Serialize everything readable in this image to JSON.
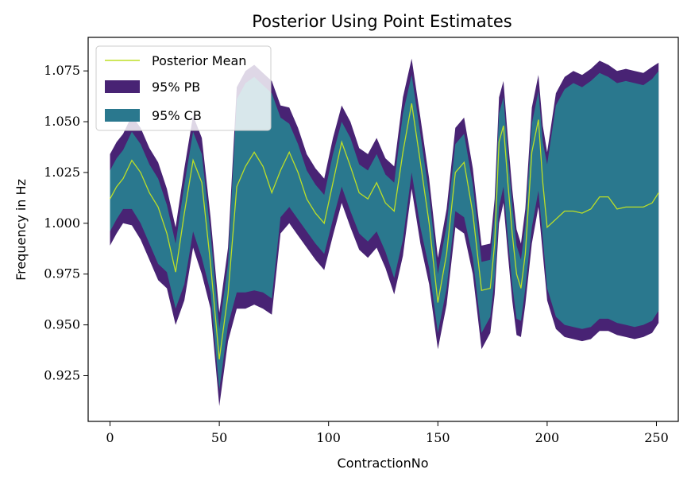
{
  "chart_data": {
    "type": "area",
    "title": "Posterior Using Point Estimates",
    "xlabel": "ContractionNo",
    "ylabel": "Frequency in Hz",
    "xlim": [
      -10,
      260
    ],
    "ylim": [
      0.9025,
      1.0915
    ],
    "xticks": [
      0,
      50,
      100,
      150,
      200,
      250
    ],
    "yticks": [
      0.925,
      0.95,
      0.975,
      1.0,
      1.025,
      1.05,
      1.075
    ],
    "ytick_labels": [
      "0.925",
      "0.950",
      "0.975",
      "1.000",
      "1.025",
      "1.050",
      "1.075"
    ],
    "xtick_labels": [
      "0",
      "50",
      "100",
      "150",
      "200",
      "250"
    ],
    "grid": false,
    "legend_position": "top-left",
    "colors": {
      "mean": "#bddf26",
      "pb": "#482374",
      "cb": "#2a788e"
    },
    "x": [
      0,
      3,
      6,
      10,
      14,
      18,
      22,
      26,
      30,
      34,
      38,
      42,
      46,
      50,
      54,
      58,
      62,
      66,
      70,
      74,
      78,
      82,
      86,
      90,
      94,
      98,
      102,
      106,
      110,
      114,
      118,
      122,
      126,
      130,
      134,
      138,
      142,
      146,
      150,
      154,
      158,
      162,
      166,
      170,
      174,
      176,
      178,
      180,
      182,
      184,
      186,
      188,
      190,
      193,
      196,
      198,
      200,
      204,
      208,
      212,
      216,
      220,
      224,
      228,
      232,
      236,
      240,
      244,
      248,
      251
    ],
    "series": [
      {
        "name": "Posterior Mean",
        "values": [
          1.012,
          1.018,
          1.022,
          1.031,
          1.025,
          1.015,
          1.008,
          0.995,
          0.976,
          1.005,
          1.031,
          1.02,
          0.98,
          0.933,
          0.965,
          1.018,
          1.028,
          1.035,
          1.028,
          1.015,
          1.026,
          1.035,
          1.025,
          1.012,
          1.005,
          1.0,
          1.02,
          1.04,
          1.028,
          1.015,
          1.012,
          1.02,
          1.01,
          1.006,
          1.035,
          1.059,
          1.03,
          1.0,
          0.961,
          0.985,
          1.025,
          1.03,
          1.005,
          0.967,
          0.968,
          0.99,
          1.04,
          1.048,
          1.02,
          0.995,
          0.975,
          0.968,
          0.985,
          1.035,
          1.051,
          1.02,
          0.998,
          1.002,
          1.006,
          1.006,
          1.005,
          1.007,
          1.013,
          1.013,
          1.007,
          1.008,
          1.008,
          1.008,
          1.01,
          1.015
        ]
      },
      {
        "name": "95% PB",
        "upper": [
          1.034,
          1.04,
          1.044,
          1.053,
          1.047,
          1.037,
          1.03,
          1.017,
          0.998,
          1.027,
          1.053,
          1.042,
          1.003,
          0.956,
          0.988,
          1.067,
          1.075,
          1.078,
          1.074,
          1.07,
          1.058,
          1.057,
          1.047,
          1.034,
          1.027,
          1.022,
          1.042,
          1.058,
          1.05,
          1.037,
          1.034,
          1.042,
          1.032,
          1.028,
          1.062,
          1.081,
          1.052,
          1.022,
          0.983,
          1.007,
          1.047,
          1.052,
          1.027,
          0.989,
          0.99,
          1.012,
          1.062,
          1.07,
          1.042,
          1.017,
          0.997,
          0.99,
          1.007,
          1.057,
          1.073,
          1.048,
          1.035,
          1.064,
          1.072,
          1.075,
          1.073,
          1.076,
          1.08,
          1.078,
          1.075,
          1.076,
          1.075,
          1.074,
          1.077,
          1.079
        ],
        "lower": [
          0.989,
          0.995,
          1.0,
          0.999,
          0.992,
          0.982,
          0.972,
          0.968,
          0.95,
          0.962,
          0.988,
          0.975,
          0.958,
          0.91,
          0.942,
          0.958,
          0.958,
          0.96,
          0.958,
          0.955,
          0.995,
          1.0,
          0.994,
          0.988,
          0.982,
          0.977,
          0.994,
          1.01,
          0.998,
          0.987,
          0.983,
          0.988,
          0.978,
          0.965,
          0.984,
          1.017,
          0.99,
          0.97,
          0.938,
          0.96,
          0.998,
          0.995,
          0.975,
          0.938,
          0.946,
          0.965,
          1.0,
          1.01,
          0.985,
          0.962,
          0.945,
          0.944,
          0.96,
          0.99,
          1.008,
          0.985,
          0.962,
          0.948,
          0.944,
          0.943,
          0.942,
          0.943,
          0.947,
          0.947,
          0.945,
          0.944,
          0.943,
          0.944,
          0.946,
          0.951
        ]
      },
      {
        "name": "95% CB",
        "upper": [
          1.026,
          1.032,
          1.036,
          1.045,
          1.039,
          1.029,
          1.022,
          1.009,
          0.99,
          1.019,
          1.045,
          1.034,
          0.995,
          0.948,
          0.98,
          1.061,
          1.069,
          1.072,
          1.068,
          1.064,
          1.052,
          1.049,
          1.039,
          1.026,
          1.019,
          1.014,
          1.034,
          1.05,
          1.042,
          1.029,
          1.026,
          1.034,
          1.024,
          1.02,
          1.054,
          1.073,
          1.044,
          1.014,
          0.975,
          0.999,
          1.039,
          1.044,
          1.019,
          0.981,
          0.982,
          1.004,
          1.054,
          1.062,
          1.034,
          1.009,
          0.989,
          0.982,
          0.999,
          1.049,
          1.065,
          1.04,
          1.029,
          1.058,
          1.066,
          1.069,
          1.067,
          1.07,
          1.074,
          1.072,
          1.069,
          1.07,
          1.069,
          1.068,
          1.071,
          1.075
        ],
        "lower": [
          0.996,
          1.002,
          1.007,
          1.007,
          1.0,
          0.99,
          0.98,
          0.976,
          0.958,
          0.97,
          0.996,
          0.983,
          0.966,
          0.918,
          0.95,
          0.966,
          0.966,
          0.967,
          0.966,
          0.963,
          1.003,
          1.008,
          1.002,
          0.996,
          0.99,
          0.985,
          1.002,
          1.018,
          1.006,
          0.995,
          0.991,
          0.996,
          0.986,
          0.973,
          0.992,
          1.025,
          0.998,
          0.978,
          0.946,
          0.968,
          1.006,
          1.003,
          0.983,
          0.946,
          0.954,
          0.973,
          1.008,
          1.018,
          0.993,
          0.97,
          0.953,
          0.952,
          0.968,
          0.998,
          1.016,
          0.993,
          0.968,
          0.954,
          0.95,
          0.949,
          0.948,
          0.949,
          0.953,
          0.953,
          0.951,
          0.95,
          0.949,
          0.95,
          0.952,
          0.957
        ]
      }
    ]
  }
}
